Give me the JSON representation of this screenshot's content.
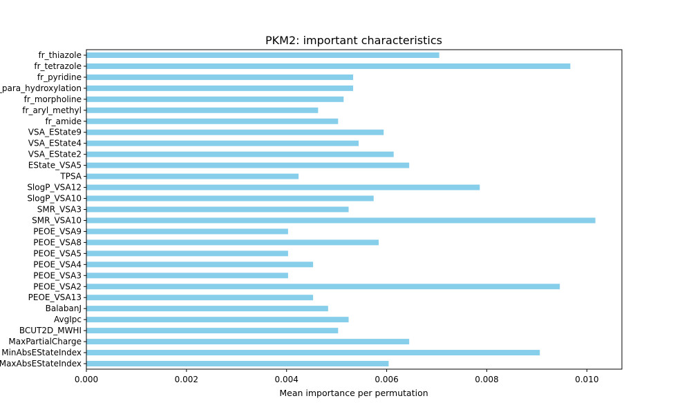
{
  "chart_data": {
    "type": "bar",
    "orientation": "horizontal",
    "title": "PKM2: important characteristics",
    "xlabel": "Mean importance per permutation",
    "ylabel": "",
    "xlim": [
      0,
      0.0107
    ],
    "xticks": [
      0.0,
      0.002,
      0.004,
      0.006,
      0.008,
      0.01
    ],
    "xtick_labels": [
      "0.000",
      "0.002",
      "0.004",
      "0.006",
      "0.008",
      "0.010"
    ],
    "grid": false,
    "bar_color": "#87ceeb",
    "categories": [
      "fr_thiazole",
      "fr_tetrazole",
      "fr_pyridine",
      "fr_para_hydroxylation",
      "fr_morpholine",
      "fr_aryl_methyl",
      "fr_amide",
      "VSA_EState9",
      "VSA_EState4",
      "VSA_EState2",
      "EState_VSA5",
      "TPSA",
      "SlogP_VSA12",
      "SlogP_VSA10",
      "SMR_VSA3",
      "SMR_VSA10",
      "PEOE_VSA9",
      "PEOE_VSA8",
      "PEOE_VSA5",
      "PEOE_VSA4",
      "PEOE_VSA3",
      "PEOE_VSA2",
      "PEOE_VSA13",
      "BalabanJ",
      "AvgIpc",
      "BCUT2D_MWHI",
      "MaxPartialCharge",
      "MinAbsEStateIndex",
      "MaxAbsEStateIndex"
    ],
    "values": [
      0.00705,
      0.00967,
      0.00533,
      0.00533,
      0.00514,
      0.00463,
      0.00503,
      0.00594,
      0.00544,
      0.00614,
      0.00645,
      0.00424,
      0.00786,
      0.00574,
      0.00524,
      0.01017,
      0.00403,
      0.00584,
      0.00403,
      0.00453,
      0.00403,
      0.00946,
      0.00453,
      0.00483,
      0.00524,
      0.00503,
      0.00645,
      0.00906,
      0.00604
    ]
  }
}
